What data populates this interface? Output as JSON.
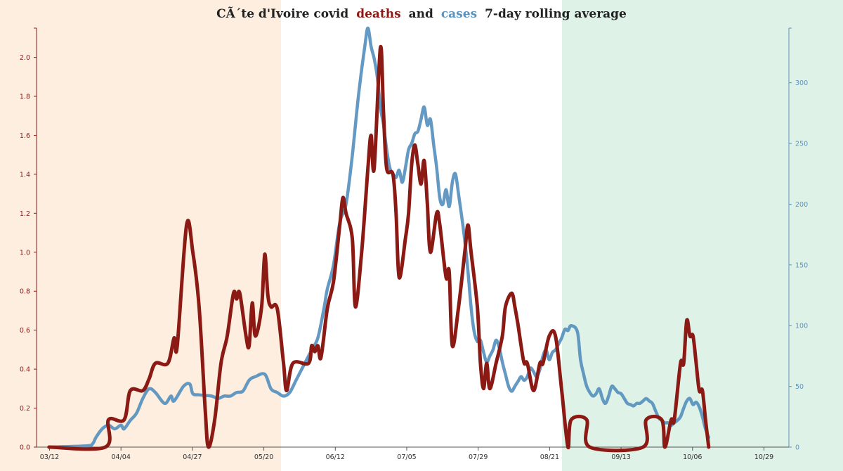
{
  "chart_data": {
    "type": "line",
    "title_parts": {
      "prefix": "CÃ´te d'Ivoire covid",
      "deaths": "deaths",
      "and": "and",
      "cases": "cases",
      "suffix": "7-day rolling average"
    },
    "x_ticks": [
      "03/12",
      "04/04",
      "04/27",
      "05/20",
      "06/12",
      "07/05",
      "07/29",
      "08/21",
      "09/13",
      "10/06",
      "10/29"
    ],
    "y_left": {
      "ticks": [
        "0.0",
        "0.2",
        "0.4",
        "0.6",
        "0.8",
        "1.0",
        "1.2",
        "1.4",
        "1.6",
        "1.8",
        "2.0"
      ],
      "range": [
        0,
        2.15
      ]
    },
    "y_right": {
      "ticks": [
        "0",
        "50",
        "100",
        "150",
        "200",
        "250",
        "300"
      ],
      "range": [
        0,
        345
      ]
    },
    "x_range_days": [
      0,
      235
    ],
    "colors": {
      "deaths": "#8b1a14",
      "cases": "#5b93bf",
      "left_band": "#fdeee0",
      "right_band": "#dff2e8",
      "axis": "#8b1a14",
      "axis_right": "#5b93bf",
      "title": "#222222"
    },
    "series": [
      {
        "name": "deaths",
        "axis": "left",
        "points": [
          [
            0,
            0
          ],
          [
            18,
            0
          ],
          [
            19,
            0.14
          ],
          [
            24,
            0.14
          ],
          [
            26,
            0.29
          ],
          [
            30,
            0.29
          ],
          [
            32,
            0.35
          ],
          [
            34,
            0.43
          ],
          [
            38,
            0.43
          ],
          [
            40,
            0.56
          ],
          [
            41,
            0.52
          ],
          [
            44,
            1.14
          ],
          [
            46,
            1.0
          ],
          [
            48,
            0.72
          ],
          [
            50,
            0.18
          ],
          [
            51,
            0
          ],
          [
            53,
            0.14
          ],
          [
            55,
            0.43
          ],
          [
            57,
            0.57
          ],
          [
            59,
            0.79
          ],
          [
            60,
            0.76
          ],
          [
            61,
            0.79
          ],
          [
            63,
            0.57
          ],
          [
            64,
            0.52
          ],
          [
            65,
            0.74
          ],
          [
            66,
            0.57
          ],
          [
            68,
            0.72
          ],
          [
            69,
            0.99
          ],
          [
            70,
            0.78
          ],
          [
            71,
            0.72
          ],
          [
            73,
            0.71
          ],
          [
            75,
            0.43
          ],
          [
            76,
            0.29
          ],
          [
            78,
            0.43
          ],
          [
            83,
            0.43
          ],
          [
            84,
            0.52
          ],
          [
            85,
            0.49
          ],
          [
            86,
            0.52
          ],
          [
            87,
            0.46
          ],
          [
            89,
            0.71
          ],
          [
            91,
            0.85
          ],
          [
            93,
            1.14
          ],
          [
            94,
            1.28
          ],
          [
            95,
            1.2
          ],
          [
            97,
            1.07
          ],
          [
            98,
            0.72
          ],
          [
            100,
            1.0
          ],
          [
            102,
            1.43
          ],
          [
            103,
            1.6
          ],
          [
            104,
            1.43
          ],
          [
            106,
            2.05
          ],
          [
            107,
            1.71
          ],
          [
            108,
            1.43
          ],
          [
            110,
            1.4
          ],
          [
            111,
            1.2
          ],
          [
            112,
            0.87
          ],
          [
            114,
            1.07
          ],
          [
            115,
            1.2
          ],
          [
            116,
            1.45
          ],
          [
            117,
            1.55
          ],
          [
            118,
            1.45
          ],
          [
            119,
            1.35
          ],
          [
            120,
            1.47
          ],
          [
            121,
            1.25
          ],
          [
            122,
            1.0
          ],
          [
            124,
            1.2
          ],
          [
            125,
            1.14
          ],
          [
            127,
            0.87
          ],
          [
            128,
            0.9
          ],
          [
            129,
            0.52
          ],
          [
            131,
            0.72
          ],
          [
            133,
            1.0
          ],
          [
            134,
            1.14
          ],
          [
            135,
            1.0
          ],
          [
            137,
            0.72
          ],
          [
            138,
            0.43
          ],
          [
            139,
            0.3
          ],
          [
            140,
            0.43
          ],
          [
            141,
            0.3
          ],
          [
            143,
            0.43
          ],
          [
            145,
            0.57
          ],
          [
            146,
            0.72
          ],
          [
            148,
            0.79
          ],
          [
            149,
            0.72
          ],
          [
            150,
            0.63
          ],
          [
            151,
            0.52
          ],
          [
            152,
            0.43
          ],
          [
            153,
            0.43
          ],
          [
            155,
            0.29
          ],
          [
            157,
            0.43
          ],
          [
            158,
            0.43
          ],
          [
            160,
            0.57
          ],
          [
            162,
            0.57
          ],
          [
            164,
            0.29
          ],
          [
            166,
            0
          ],
          [
            167,
            0.14
          ],
          [
            172,
            0.14
          ],
          [
            173,
            0
          ],
          [
            190,
            0
          ],
          [
            191,
            0.14
          ],
          [
            196,
            0.14
          ],
          [
            197,
            0
          ],
          [
            199,
            0.14
          ],
          [
            200,
            0.14
          ],
          [
            202,
            0.43
          ],
          [
            203,
            0.43
          ],
          [
            204,
            0.65
          ],
          [
            205,
            0.57
          ],
          [
            206,
            0.57
          ],
          [
            207,
            0.43
          ],
          [
            208,
            0.29
          ],
          [
            209,
            0.29
          ],
          [
            210,
            0.14
          ],
          [
            211,
            0
          ]
        ]
      },
      {
        "name": "cases",
        "axis": "right",
        "points": [
          [
            0,
            0
          ],
          [
            12,
            1
          ],
          [
            14,
            3
          ],
          [
            15,
            8
          ],
          [
            17,
            15
          ],
          [
            19,
            18
          ],
          [
            21,
            15
          ],
          [
            23,
            18
          ],
          [
            24,
            15
          ],
          [
            26,
            22
          ],
          [
            28,
            28
          ],
          [
            30,
            40
          ],
          [
            32,
            48
          ],
          [
            34,
            45
          ],
          [
            37,
            36
          ],
          [
            39,
            42
          ],
          [
            40,
            38
          ],
          [
            43,
            50
          ],
          [
            45,
            52
          ],
          [
            46,
            44
          ],
          [
            48,
            43
          ],
          [
            52,
            42
          ],
          [
            54,
            40
          ],
          [
            56,
            42
          ],
          [
            58,
            42
          ],
          [
            60,
            45
          ],
          [
            62,
            46
          ],
          [
            64,
            55
          ],
          [
            66,
            58
          ],
          [
            69,
            60
          ],
          [
            71,
            48
          ],
          [
            73,
            45
          ],
          [
            75,
            42
          ],
          [
            77,
            45
          ],
          [
            79,
            55
          ],
          [
            81,
            65
          ],
          [
            83,
            75
          ],
          [
            84,
            80
          ],
          [
            86,
            90
          ],
          [
            88,
            115
          ],
          [
            89,
            130
          ],
          [
            91,
            150
          ],
          [
            93,
            185
          ],
          [
            95,
            200
          ],
          [
            97,
            240
          ],
          [
            99,
            290
          ],
          [
            101,
            330
          ],
          [
            102,
            345
          ],
          [
            103,
            330
          ],
          [
            104,
            320
          ],
          [
            105,
            305
          ],
          [
            106,
            280
          ],
          [
            107,
            265
          ],
          [
            108,
            245
          ],
          [
            109,
            230
          ],
          [
            110,
            225
          ],
          [
            111,
            222
          ],
          [
            112,
            228
          ],
          [
            113,
            218
          ],
          [
            114,
            230
          ],
          [
            115,
            245
          ],
          [
            116,
            250
          ],
          [
            117,
            258
          ],
          [
            118,
            260
          ],
          [
            119,
            270
          ],
          [
            120,
            280
          ],
          [
            121,
            265
          ],
          [
            122,
            270
          ],
          [
            123,
            250
          ],
          [
            124,
            230
          ],
          [
            125,
            205
          ],
          [
            126,
            200
          ],
          [
            127,
            212
          ],
          [
            128,
            198
          ],
          [
            129,
            218
          ],
          [
            130,
            225
          ],
          [
            131,
            208
          ],
          [
            132,
            190
          ],
          [
            133,
            170
          ],
          [
            134,
            145
          ],
          [
            135,
            115
          ],
          [
            136,
            95
          ],
          [
            137,
            87
          ],
          [
            138,
            88
          ],
          [
            139,
            78
          ],
          [
            140,
            70
          ],
          [
            141,
            75
          ],
          [
            142,
            80
          ],
          [
            143,
            88
          ],
          [
            144,
            82
          ],
          [
            145,
            70
          ],
          [
            146,
            60
          ],
          [
            147,
            50
          ],
          [
            148,
            46
          ],
          [
            149,
            50
          ],
          [
            150,
            54
          ],
          [
            151,
            58
          ],
          [
            152,
            55
          ],
          [
            153,
            58
          ],
          [
            154,
            65
          ],
          [
            155,
            62
          ],
          [
            156,
            58
          ],
          [
            157,
            64
          ],
          [
            158,
            75
          ],
          [
            159,
            80
          ],
          [
            160,
            72
          ],
          [
            161,
            78
          ],
          [
            162,
            80
          ],
          [
            163,
            85
          ],
          [
            164,
            90
          ],
          [
            165,
            97
          ],
          [
            166,
            96
          ],
          [
            167,
            100
          ],
          [
            169,
            95
          ],
          [
            170,
            72
          ],
          [
            171,
            60
          ],
          [
            172,
            50
          ],
          [
            173,
            45
          ],
          [
            174,
            42
          ],
          [
            175,
            44
          ],
          [
            176,
            48
          ],
          [
            177,
            40
          ],
          [
            178,
            36
          ],
          [
            179,
            42
          ],
          [
            180,
            50
          ],
          [
            181,
            48
          ],
          [
            182,
            45
          ],
          [
            183,
            44
          ],
          [
            184,
            40
          ],
          [
            185,
            36
          ],
          [
            186,
            35
          ],
          [
            187,
            34
          ],
          [
            188,
            36
          ],
          [
            189,
            36
          ],
          [
            190,
            38
          ],
          [
            191,
            40
          ],
          [
            192,
            38
          ],
          [
            193,
            36
          ],
          [
            194,
            30
          ],
          [
            195,
            24
          ],
          [
            196,
            22
          ],
          [
            197,
            20
          ],
          [
            198,
            20
          ],
          [
            199,
            18
          ],
          [
            200,
            20
          ],
          [
            201,
            22
          ],
          [
            202,
            25
          ],
          [
            203,
            32
          ],
          [
            204,
            38
          ],
          [
            205,
            40
          ],
          [
            206,
            35
          ],
          [
            207,
            37
          ],
          [
            208,
            33
          ],
          [
            209,
            25
          ],
          [
            210,
            15
          ],
          [
            211,
            8
          ]
        ]
      }
    ],
    "grid": false,
    "legend": "none"
  }
}
